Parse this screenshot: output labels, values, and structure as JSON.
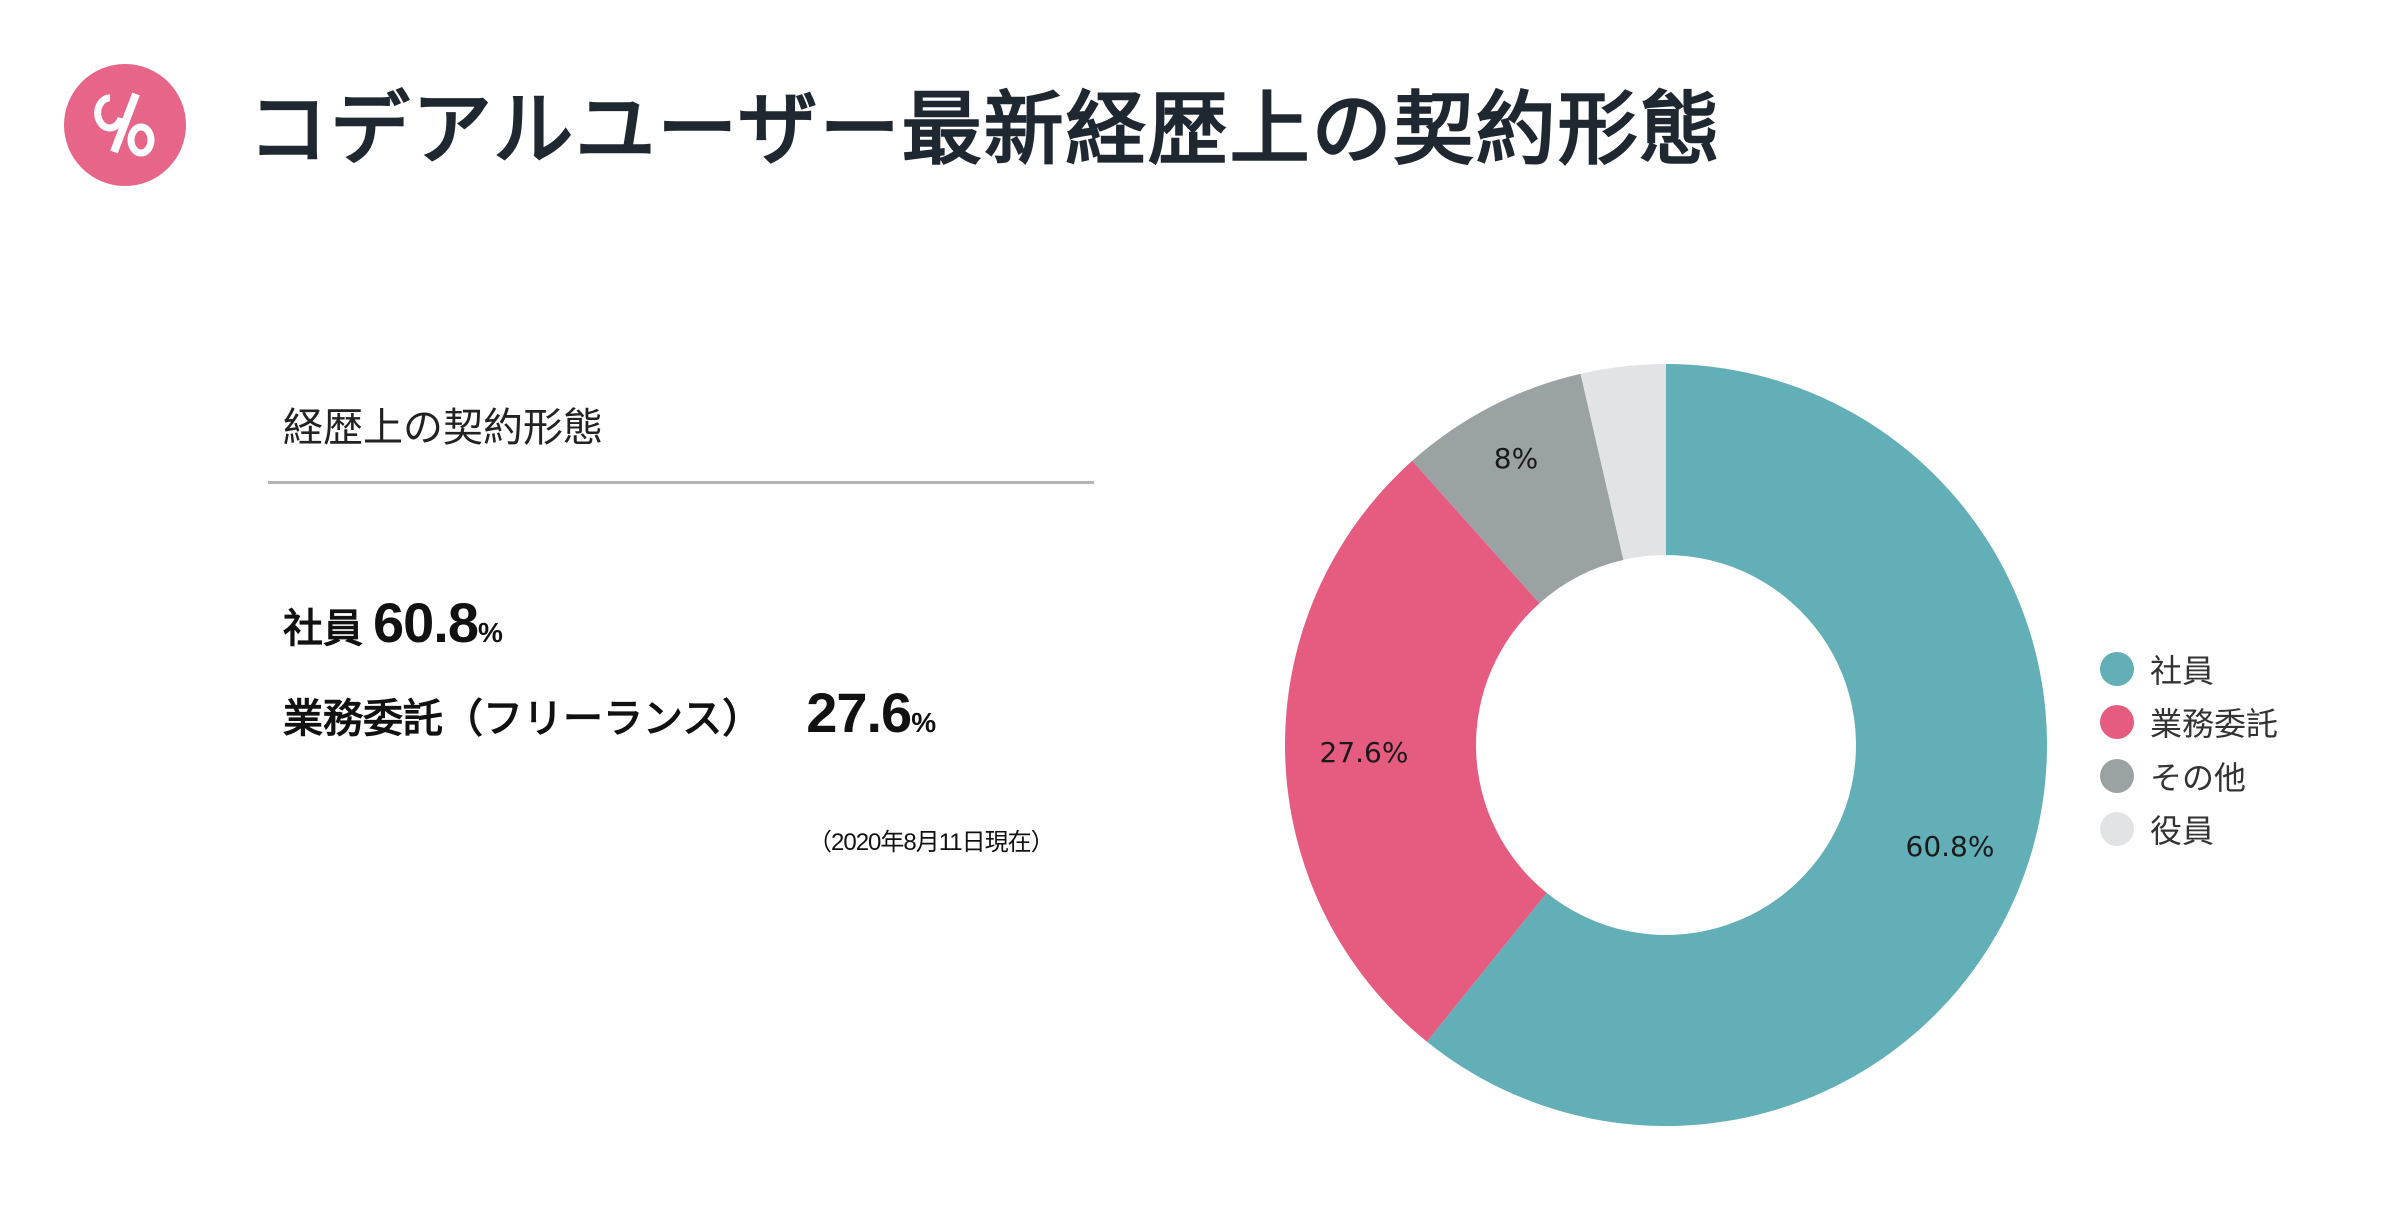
{
  "header": {
    "icon": "percent-icon",
    "icon_color": "#e8658a",
    "title": "コデアルユーザー最新経歴上の契約形態"
  },
  "summary": {
    "heading": "経歴上の契約形態",
    "stats": [
      {
        "label": "社員",
        "value": "60.8",
        "unit": "%"
      },
      {
        "label": "業務委託（フリーランス）",
        "value": "27.6",
        "unit": "%"
      }
    ],
    "as_of": "（2020年8月11日現在）"
  },
  "colors": {
    "employee": "#62afb8",
    "contractor": "#e55c80",
    "other": "#9ba2a3",
    "executive": "#e2e3e5",
    "title_text": "#1f2730"
  },
  "legend": [
    {
      "label": "社員",
      "color": "#62afb8"
    },
    {
      "label": "業務委託",
      "color": "#e55c80"
    },
    {
      "label": "その他",
      "color": "#9ba2a3"
    },
    {
      "label": "役員",
      "color": "#e2e3e5"
    }
  ],
  "slice_labels": {
    "employee": "60.8%",
    "contractor": "27.6%",
    "other": "8%"
  },
  "chart_data": {
    "type": "pie",
    "variant": "donut",
    "title": "経歴上の契約形態",
    "categories": [
      "社員",
      "業務委託",
      "その他",
      "役員"
    ],
    "values": [
      60.8,
      27.6,
      8.0,
      3.6
    ],
    "unit": "%",
    "data_labels": [
      "60.8%",
      "27.6%",
      "8%",
      ""
    ],
    "colors": [
      "#62afb8",
      "#e55c80",
      "#9ba2a3",
      "#e2e3e5"
    ],
    "start_angle": "12 o'clock, clockwise",
    "legend_position": "right",
    "note": "（2020年8月11日現在）"
  }
}
